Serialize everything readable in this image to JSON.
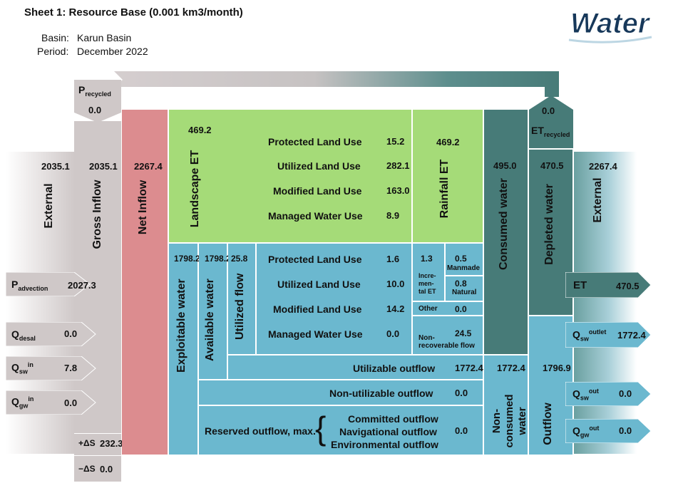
{
  "header": {
    "title": "Sheet 1: Resource Base (0.001 km3/month)",
    "basin_label": "Basin:",
    "basin_value": "Karun Basin",
    "period_label": "Period:",
    "period_value": "December 2022",
    "logo_text": "Water"
  },
  "colors": {
    "green": "#a5db78",
    "blue": "#6bb8cf",
    "dark_teal": "#477b78",
    "pink": "#dc8c8f",
    "grey": "#cfc8c8"
  },
  "inflow": {
    "p_recycled": {
      "label": "P",
      "sub": "recycled",
      "value": "0.0"
    },
    "external_left": {
      "label": "External",
      "value": "2035.1"
    },
    "gross_inflow": {
      "label": "Gross Inflow",
      "value": "2035.1"
    },
    "net_inflow": {
      "label": "Net Inflow",
      "value": "2267.4"
    },
    "p_advection": {
      "label": "P",
      "sub": "advection",
      "value": "2027.3"
    },
    "q_desal": {
      "label": "Q",
      "sub": "desal",
      "value": "0.0"
    },
    "q_sw_in": {
      "label": "Q",
      "sub": "sw",
      "sup": "in",
      "value": "7.8"
    },
    "q_gw_in": {
      "label": "Q",
      "sup": "in",
      "sub": "gw",
      "value": "0.0"
    },
    "plus_ds": {
      "label": "+ΔS",
      "value": "232.3"
    },
    "minus_ds": {
      "label": "−ΔS",
      "value": "0.0"
    }
  },
  "landscape": {
    "label": "Landscape ET",
    "value": "469.2",
    "rows": [
      {
        "label": "Protected Land Use",
        "value": "15.2"
      },
      {
        "label": "Utilized Land Use",
        "value": "282.1"
      },
      {
        "label": "Modified Land Use",
        "value": "163.0"
      },
      {
        "label": "Managed Water Use",
        "value": "8.9"
      }
    ],
    "rainfall_et": {
      "label": "Rainfall ET",
      "value": "469.2"
    }
  },
  "exploitable": {
    "exploitable_water": {
      "label": "Exploitable water",
      "value": "1798.2"
    },
    "available_water": {
      "label": "Available water",
      "value": "1798.2"
    },
    "utilized_flow": {
      "label": "Utilized flow",
      "value": "25.8"
    },
    "rows": [
      {
        "label": "Protected Land Use",
        "value": "1.6"
      },
      {
        "label": "Utilized Land Use",
        "value": "10.0"
      },
      {
        "label": "Modified Land Use",
        "value": "14.2"
      },
      {
        "label": "Managed Water Use",
        "value": "0.0"
      }
    ],
    "incremental_et": {
      "label1": "Incre-",
      "label2": "men-",
      "label3": "tal",
      "label4": "ET",
      "value": "1.3"
    },
    "manmade": {
      "label": "Manmade",
      "value": "0.5"
    },
    "natural": {
      "label": "Natural",
      "value": "0.8"
    },
    "other": {
      "label": "Other",
      "value": "0.0"
    },
    "non_recoverable": {
      "label1": "Non-",
      "label2": "recoverable flow",
      "value": "24.5"
    },
    "utilizable_outflow": {
      "label": "Utilizable outflow",
      "value": "1772.4"
    },
    "non_utilizable_outflow": {
      "label": "Non-utilizable outflow",
      "value": "0.0"
    },
    "reserved_outflow": {
      "label": "Reserved outflow, max.",
      "items": [
        "Committed outflow",
        "Navigational outflow",
        "Environmental outflow"
      ],
      "value": "0.0"
    }
  },
  "outflow": {
    "consumed_water": {
      "label": "Consumed water",
      "value": "495.0"
    },
    "depleted_water": {
      "label": "Depleted water",
      "value": "470.5"
    },
    "et_recycled": {
      "label": "ET",
      "sub": "recycled",
      "value": "0.0"
    },
    "external_right": {
      "label": "External",
      "value": "2267.4"
    },
    "et": {
      "label": "ET",
      "value": "470.5"
    },
    "q_sw_outlet": {
      "label": "Q",
      "sub": "sw",
      "sup": "outlet",
      "value": "1772.4"
    },
    "q_sw_out": {
      "label": "Q",
      "sub": "sw",
      "sup": "out",
      "value": "0.0"
    },
    "q_gw_out": {
      "label": "Q",
      "sub": "gw",
      "sup": "out",
      "value": "0.0"
    },
    "non_consumed": {
      "label1": "Non-",
      "label2": "consumed",
      "label3": "water",
      "value": "1772.4"
    },
    "outflow_total": {
      "label": "Outflow",
      "value": "1796.9"
    }
  }
}
